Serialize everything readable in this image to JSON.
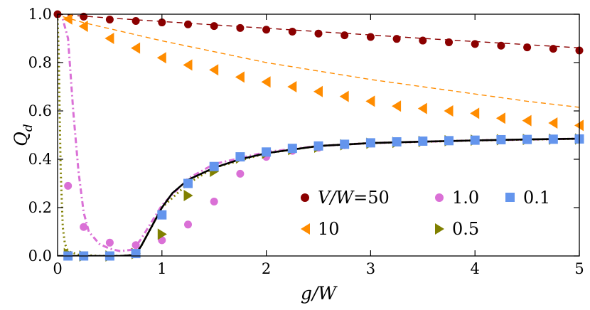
{
  "chart_data": {
    "type": "scatter",
    "xlabel": "g/W",
    "ylabel": "Q_d",
    "xlim": [
      0,
      5
    ],
    "ylim": [
      0,
      1.0
    ],
    "xticks": [
      "0",
      "1",
      "2",
      "3",
      "4",
      "5"
    ],
    "yticks": [
      "0.0",
      "0.2",
      "0.4",
      "0.6",
      "0.8",
      "1.0"
    ],
    "legend_location": "lower-right",
    "legend": {
      "prefix": "V/W",
      "entries": [
        "=50",
        "1.0",
        "0.1",
        "10",
        "0.5"
      ]
    },
    "series": [
      {
        "name": "V/W=50",
        "marker": "circle",
        "color": "#8b0000",
        "x": [
          0,
          0.25,
          0.5,
          0.75,
          1.0,
          1.25,
          1.5,
          1.75,
          2.0,
          2.25,
          2.5,
          2.75,
          3.0,
          3.25,
          3.5,
          3.75,
          4.0,
          4.25,
          4.5,
          4.75,
          5.0
        ],
        "y": [
          1.0,
          0.99,
          0.978,
          0.972,
          0.966,
          0.958,
          0.951,
          0.943,
          0.936,
          0.928,
          0.92,
          0.913,
          0.906,
          0.898,
          0.891,
          0.884,
          0.877,
          0.87,
          0.863,
          0.857,
          0.85
        ],
        "curve_x": [
          0,
          0.5,
          1.0,
          1.5,
          2.0,
          2.5,
          3.0,
          3.5,
          4.0,
          4.5,
          5.0
        ],
        "curve_y": [
          1.0,
          0.984,
          0.97,
          0.956,
          0.942,
          0.928,
          0.914,
          0.9,
          0.887,
          0.874,
          0.861
        ]
      },
      {
        "name": "10",
        "marker": "triangle-left",
        "color": "#ff8c00",
        "x": [
          0.1,
          0.25,
          0.5,
          0.75,
          1.0,
          1.25,
          1.5,
          1.75,
          2.0,
          2.25,
          2.5,
          2.75,
          3.0,
          3.25,
          3.5,
          3.75,
          4.0,
          4.25,
          4.5,
          4.75,
          5.0
        ],
        "y": [
          0.98,
          0.95,
          0.9,
          0.86,
          0.82,
          0.79,
          0.77,
          0.74,
          0.72,
          0.7,
          0.68,
          0.66,
          0.64,
          0.62,
          0.61,
          0.6,
          0.59,
          0.57,
          0.56,
          0.55,
          0.54
        ],
        "curve_x": [
          0.05,
          0.25,
          0.5,
          0.75,
          1.0,
          1.5,
          2.0,
          2.5,
          3.0,
          3.5,
          4.0,
          4.5,
          5.0
        ],
        "curve_y": [
          0.99,
          0.965,
          0.94,
          0.915,
          0.89,
          0.845,
          0.8,
          0.765,
          0.73,
          0.7,
          0.67,
          0.64,
          0.615
        ]
      },
      {
        "name": "1.0",
        "marker": "circle",
        "color": "#da70d6",
        "x": [
          0.1,
          0.25,
          0.5,
          0.75,
          1.0,
          1.25,
          1.5,
          1.75,
          2.0,
          2.25,
          2.5,
          2.75,
          3.0,
          3.25,
          3.5,
          3.75,
          4.0,
          4.25,
          4.5,
          4.75,
          5.0
        ],
        "y": [
          0.29,
          0.12,
          0.055,
          0.045,
          0.065,
          0.13,
          0.225,
          0.34,
          0.41,
          0.435,
          0.448,
          0.458,
          0.465,
          0.469,
          0.472,
          0.475,
          0.477,
          0.479,
          0.48,
          0.481,
          0.482
        ],
        "curve_x": [
          0.05,
          0.1,
          0.15,
          0.2,
          0.25,
          0.3,
          0.4,
          0.5,
          0.6,
          0.7,
          0.75,
          0.8,
          0.9,
          1.0,
          1.25,
          1.5,
          2.0,
          2.5,
          3.0,
          4.0,
          5.0
        ],
        "curve_y": [
          0.98,
          0.9,
          0.6,
          0.35,
          0.18,
          0.1,
          0.05,
          0.03,
          0.02,
          0.025,
          0.04,
          0.07,
          0.14,
          0.21,
          0.32,
          0.38,
          0.43,
          0.455,
          0.467,
          0.478,
          0.485
        ]
      },
      {
        "name": "0.5",
        "marker": "triangle-right",
        "color": "#808000",
        "x": [
          0.1,
          0.25,
          0.5,
          0.75,
          1.0,
          1.25,
          1.5,
          1.75,
          2.0,
          2.25,
          2.5,
          2.75,
          3.0,
          3.25,
          3.5,
          3.75,
          4.0,
          4.25,
          4.5,
          4.75,
          5.0
        ],
        "y": [
          0.01,
          0.0,
          0.0,
          0.01,
          0.09,
          0.25,
          0.35,
          0.405,
          0.425,
          0.44,
          0.45,
          0.46,
          0.466,
          0.47,
          0.474,
          0.477,
          0.479,
          0.481,
          0.482,
          0.483,
          0.484
        ],
        "curve_x": [
          0.0,
          0.01,
          0.02,
          0.03,
          0.05,
          0.07,
          0.1,
          0.2,
          0.4,
          0.6,
          0.7,
          0.75,
          0.8,
          0.9,
          1.0,
          1.25,
          1.5,
          2.0,
          2.5,
          3.0,
          4.0,
          5.0
        ],
        "curve_y": [
          0.98,
          0.85,
          0.6,
          0.35,
          0.12,
          0.05,
          0.02,
          0.005,
          0.0,
          0.0,
          0.003,
          0.01,
          0.04,
          0.12,
          0.2,
          0.3,
          0.365,
          0.425,
          0.455,
          0.467,
          0.478,
          0.485
        ]
      },
      {
        "name": "0.1",
        "marker": "square",
        "color": "#6495ed",
        "x": [
          0.1,
          0.25,
          0.5,
          0.75,
          1.0,
          1.25,
          1.5,
          1.75,
          2.0,
          2.25,
          2.5,
          2.75,
          3.0,
          3.25,
          3.5,
          3.75,
          4.0,
          4.25,
          4.5,
          4.75,
          5.0
        ],
        "y": [
          0.0,
          0.0,
          0.0,
          0.01,
          0.17,
          0.3,
          0.37,
          0.41,
          0.43,
          0.445,
          0.455,
          0.462,
          0.468,
          0.472,
          0.475,
          0.477,
          0.479,
          0.481,
          0.482,
          0.483,
          0.484
        ],
        "curve_x": [
          0.0,
          0.2,
          0.4,
          0.6,
          0.7,
          0.75,
          0.8,
          0.9,
          1.0,
          1.1,
          1.25,
          1.5,
          1.75,
          2.0,
          2.5,
          3.0,
          3.5,
          4.0,
          4.5,
          5.0
        ],
        "curve_y": [
          0.0,
          0.0,
          0.0,
          0.0,
          0.003,
          0.01,
          0.04,
          0.12,
          0.2,
          0.26,
          0.315,
          0.365,
          0.4,
          0.425,
          0.455,
          0.467,
          0.473,
          0.478,
          0.482,
          0.485
        ]
      }
    ]
  }
}
